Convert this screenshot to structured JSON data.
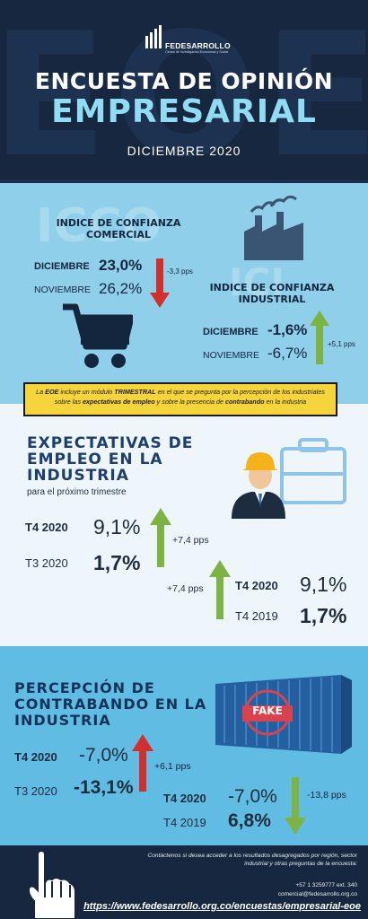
{
  "header": {
    "bg_letters": "EOE",
    "brand_name": "FEDESARROLLO",
    "brand_tagline": "Centro de Investigación Económica y Social",
    "title_line1": "ENCUESTA DE OPINIÓN",
    "title_line2": "EMPRESARIAL",
    "date": "DICIEMBRE 2020"
  },
  "icco": {
    "ghost": "ICCO",
    "title": "INDICE DE CONFIANZA COMERCIAL",
    "rows": [
      {
        "label": "DICIEMBRE",
        "value": "23,0%"
      },
      {
        "label": "NOVIEMBRE",
        "value": "26,2%"
      }
    ],
    "change": "-3,3 pps"
  },
  "ici": {
    "ghost": "ICI",
    "title": "INDICE DE CONFIANZA INDUSTRIAL",
    "rows": [
      {
        "label": "DICIEMBRE",
        "value": "-1,6%"
      },
      {
        "label": "NOVIEMBRE",
        "value": "-6,7%"
      }
    ],
    "change": "+5,1 pps"
  },
  "note": {
    "p1": "La ",
    "p2": "EOE",
    "p3": " incluye un módulo ",
    "p4": "TRIMESTRAL",
    "p5": " en el que se pregunta por la percepción de los industriales sobre las ",
    "p6": "expectativas de empleo",
    "p7": " y sobre la presencia de ",
    "p8": "contrabando",
    "p9": " en la industria"
  },
  "empleo": {
    "title_l1": "EXPECTATIVAS DE",
    "title_l2": "EMPLEO EN LA",
    "title_l3": "INDUSTRIA",
    "subtitle": "para el próximo trimestre",
    "left": [
      {
        "label": "T4 2020",
        "value": "9,1%"
      },
      {
        "label": "T3 2020",
        "value": "1,7%"
      }
    ],
    "left_change": "+7,4 pps",
    "right": [
      {
        "label": "T4 2020",
        "value": "9,1%"
      },
      {
        "label": "T4 2019",
        "value": "1,7%"
      }
    ],
    "right_change": "+7,4 pps"
  },
  "contrabando": {
    "title_l1": "PERCEPCIÓN DE",
    "title_l2": "CONTRABANDO EN LA",
    "title_l3": "INDUSTRIA",
    "fake": "FAKE",
    "left": [
      {
        "label": "T4 2020",
        "value": "-7,0%"
      },
      {
        "label": "T3 2020",
        "value": "-13,1%"
      }
    ],
    "left_change": "+6,1 pps",
    "right": [
      {
        "label": "T4 2020",
        "value": "-7,0%"
      },
      {
        "label": "T4 2019",
        "value": "6,8%"
      }
    ],
    "right_change": "-13,8 pps"
  },
  "footer": {
    "contact_text": "Contáctenos si desea acceder a los resultados desagregados por región, sector industrial y otras preguntas de la encuesta:",
    "phone": "+57 1 3259777 ext. 340",
    "email": "comercial@fedesarrollo.org.co",
    "url": "https://www.fedesarrollo.org.co/encuestas/empresarial-eoe"
  },
  "colors": {
    "navy": "#17273f",
    "light_blue": "#8fcfe9",
    "mid_blue": "#60bce2",
    "accent_cyan": "#8fdcf3",
    "up_green": "#7cb342",
    "down_red": "#d32f2f",
    "note_yellow": "#f6d43b"
  }
}
